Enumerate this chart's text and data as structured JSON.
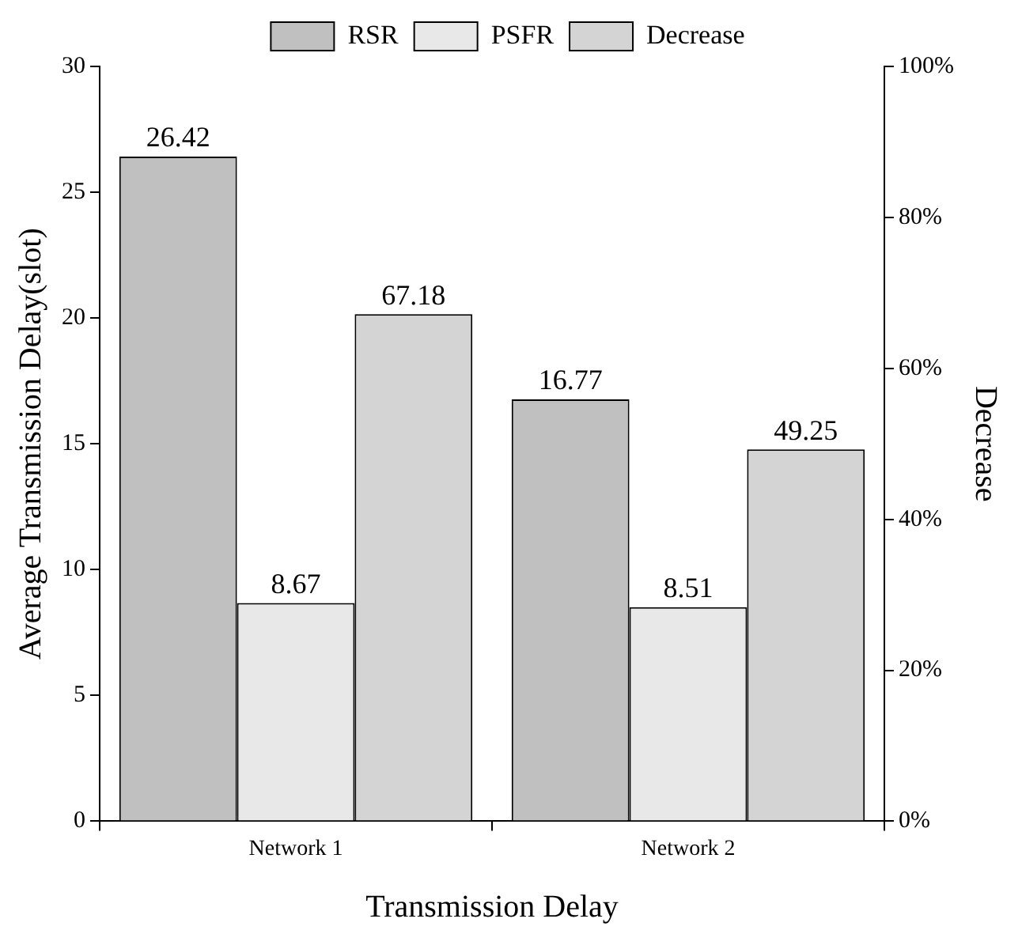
{
  "chart_data": {
    "type": "bar",
    "xlabel": "Transmission Delay",
    "ylabel": "Average Transmission Delay(slot)",
    "y2label": "Decrease",
    "categories": [
      "Network 1",
      "Network 2"
    ],
    "series": [
      {
        "name": "RSR",
        "color": "#c0c0c0",
        "values": [
          26.42,
          16.77
        ]
      },
      {
        "name": "PSFR",
        "color": "#e8e8e8",
        "values": [
          8.67,
          8.51
        ]
      },
      {
        "name": "Decrease",
        "color": "#d4d4d4",
        "values": [
          67.18,
          49.25
        ],
        "axis": "y2"
      }
    ],
    "ylim": [
      0,
      30
    ],
    "yticks": [
      0,
      5,
      10,
      15,
      20,
      25,
      30
    ],
    "y2lim": [
      0,
      100
    ],
    "y2ticks": [
      {
        "value": 0,
        "label": "0%"
      },
      {
        "value": 20,
        "label": "20%"
      },
      {
        "value": 40,
        "label": "40%"
      },
      {
        "value": 60,
        "label": "60%"
      },
      {
        "value": 80,
        "label": "80%"
      },
      {
        "value": 100,
        "label": "100%"
      }
    ],
    "data_labels": true,
    "grid": false,
    "legend": "top"
  }
}
